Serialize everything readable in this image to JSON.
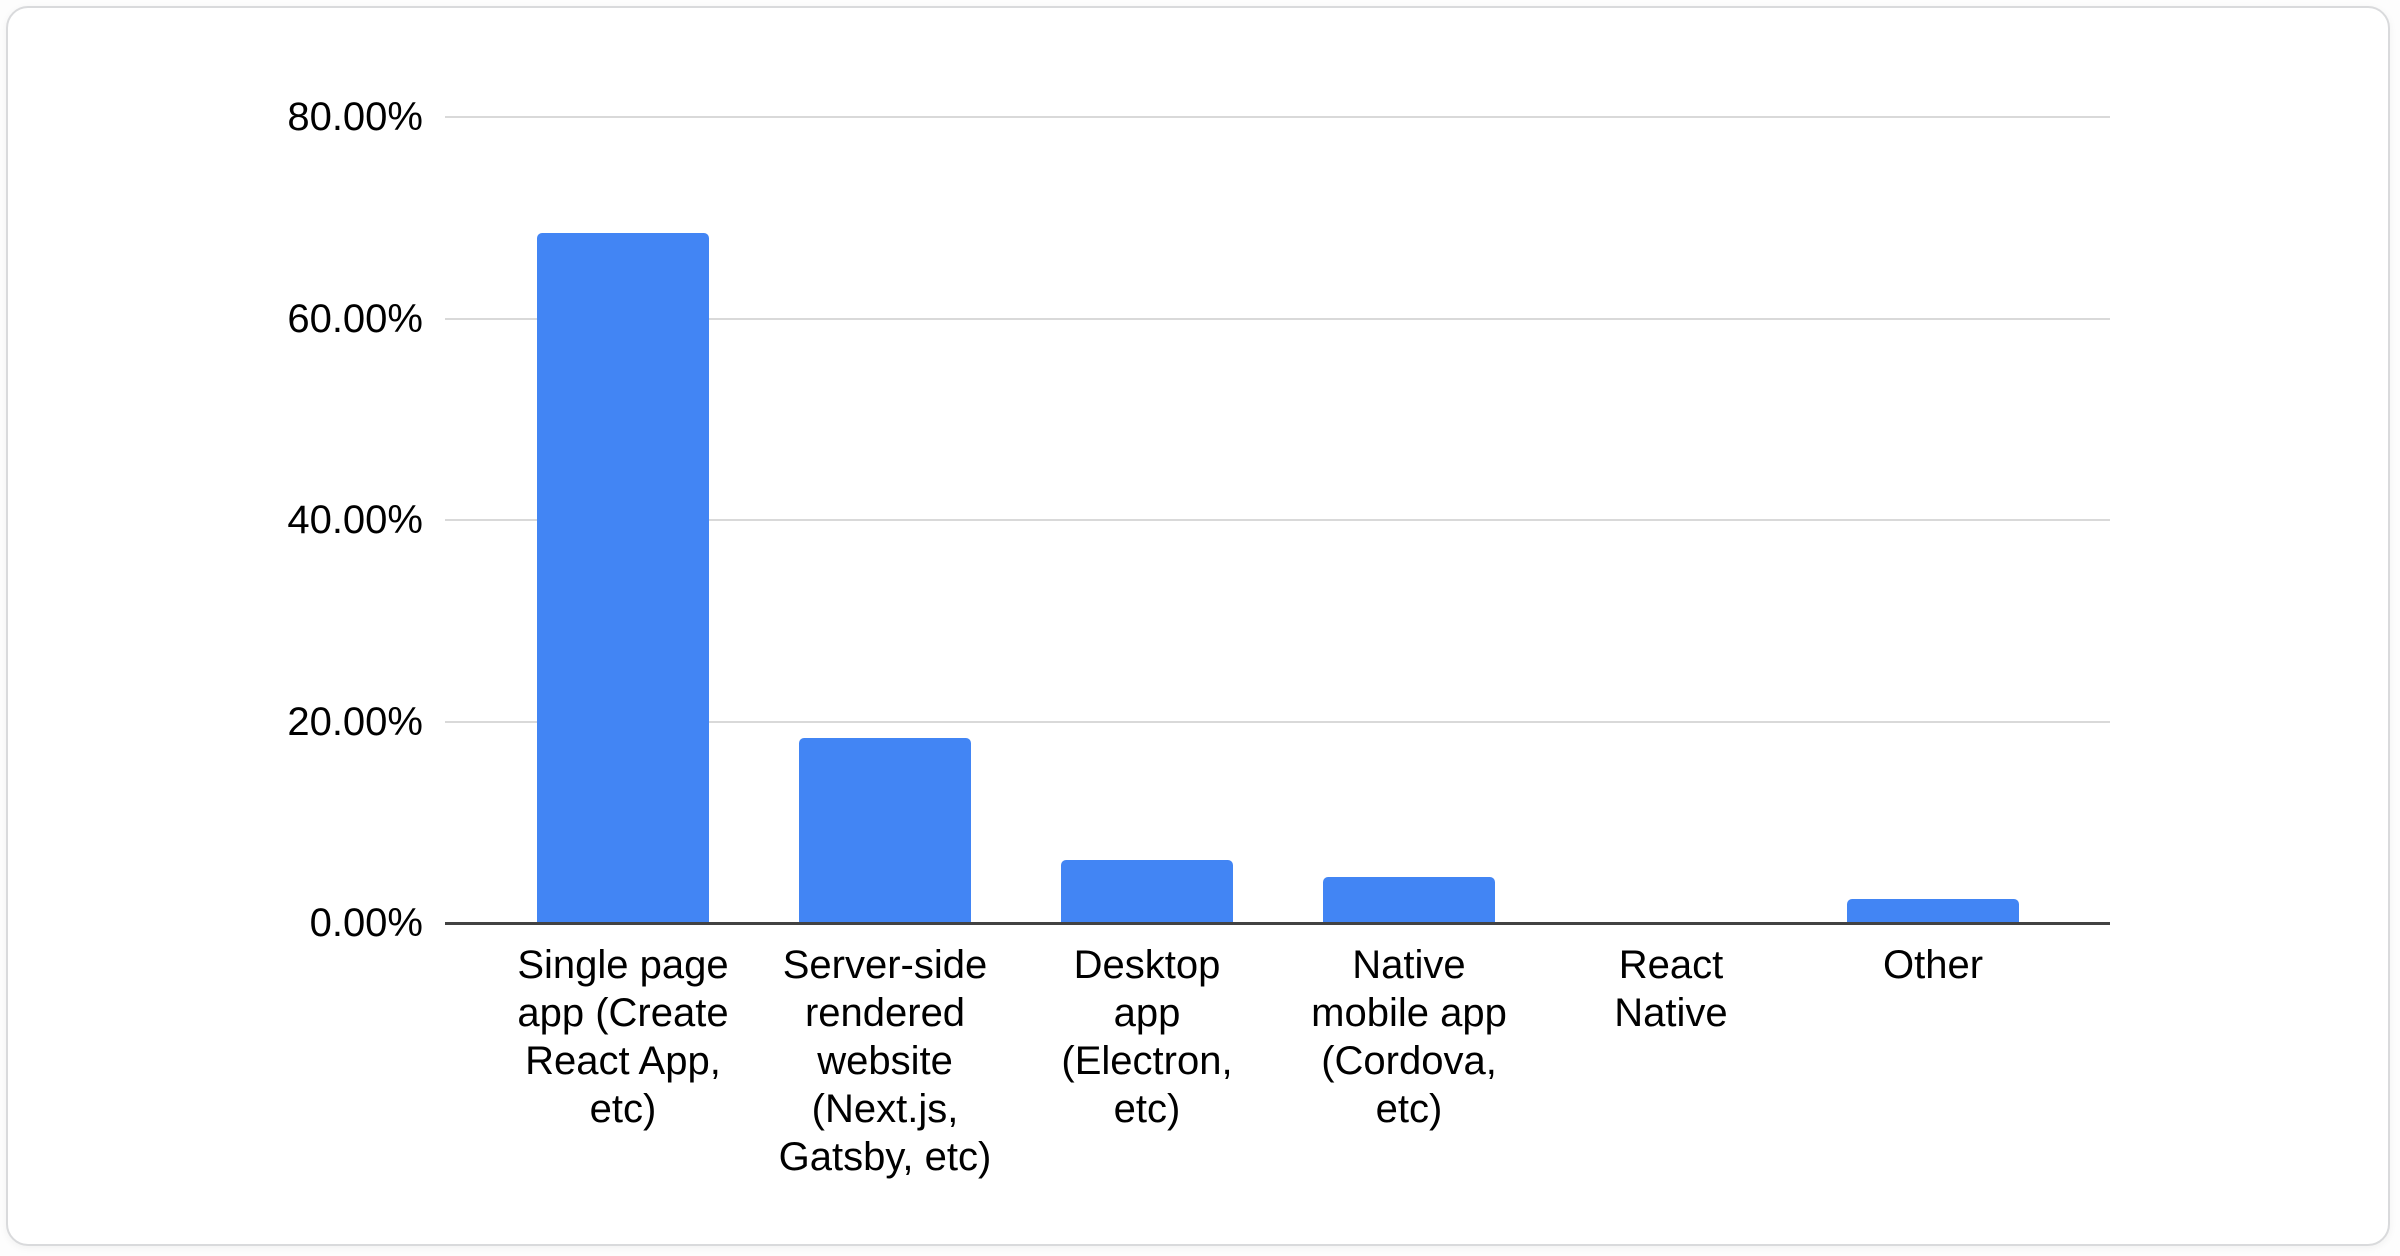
{
  "chart_data": {
    "type": "bar",
    "title": "",
    "xlabel": "",
    "ylabel": "",
    "categories": [
      "Single page app (Create React App, etc)",
      "Server-side rendered website (Next.js, Gatsby, etc)",
      "Desktop app (Electron, etc)",
      "Native mobile app (Cordova, etc)",
      "React Native",
      "Other"
    ],
    "category_label_lines": [
      [
        "Single page",
        "app (Create",
        "React App,",
        "etc)"
      ],
      [
        "Server-side",
        "rendered",
        "website",
        "(Next.js,",
        "Gatsby, etc)"
      ],
      [
        "Desktop",
        "app",
        "(Electron,",
        "etc)"
      ],
      [
        "Native",
        "mobile app",
        "(Cordova,",
        "etc)"
      ],
      [
        "React",
        "Native"
      ],
      [
        "Other"
      ]
    ],
    "values": [
      68.5,
      18.4,
      6.3,
      4.6,
      0,
      2.4
    ],
    "value_unit": "%",
    "y_ticks": [
      {
        "label": "80.00%",
        "value": 80
      },
      {
        "label": "60.00%",
        "value": 60
      },
      {
        "label": "40.00%",
        "value": 40
      },
      {
        "label": "20.00%",
        "value": 20
      },
      {
        "label": "0.00%",
        "value": 0
      }
    ],
    "ylim": [
      0,
      80
    ],
    "grid": true,
    "legend_position": "none",
    "colors": {
      "bar": "#4285f4",
      "gridline": "#d9d9d9",
      "axis_baseline": "#424242",
      "text": "#000000",
      "card_background": "#ffffff",
      "card_border": "#d9dadc"
    }
  }
}
